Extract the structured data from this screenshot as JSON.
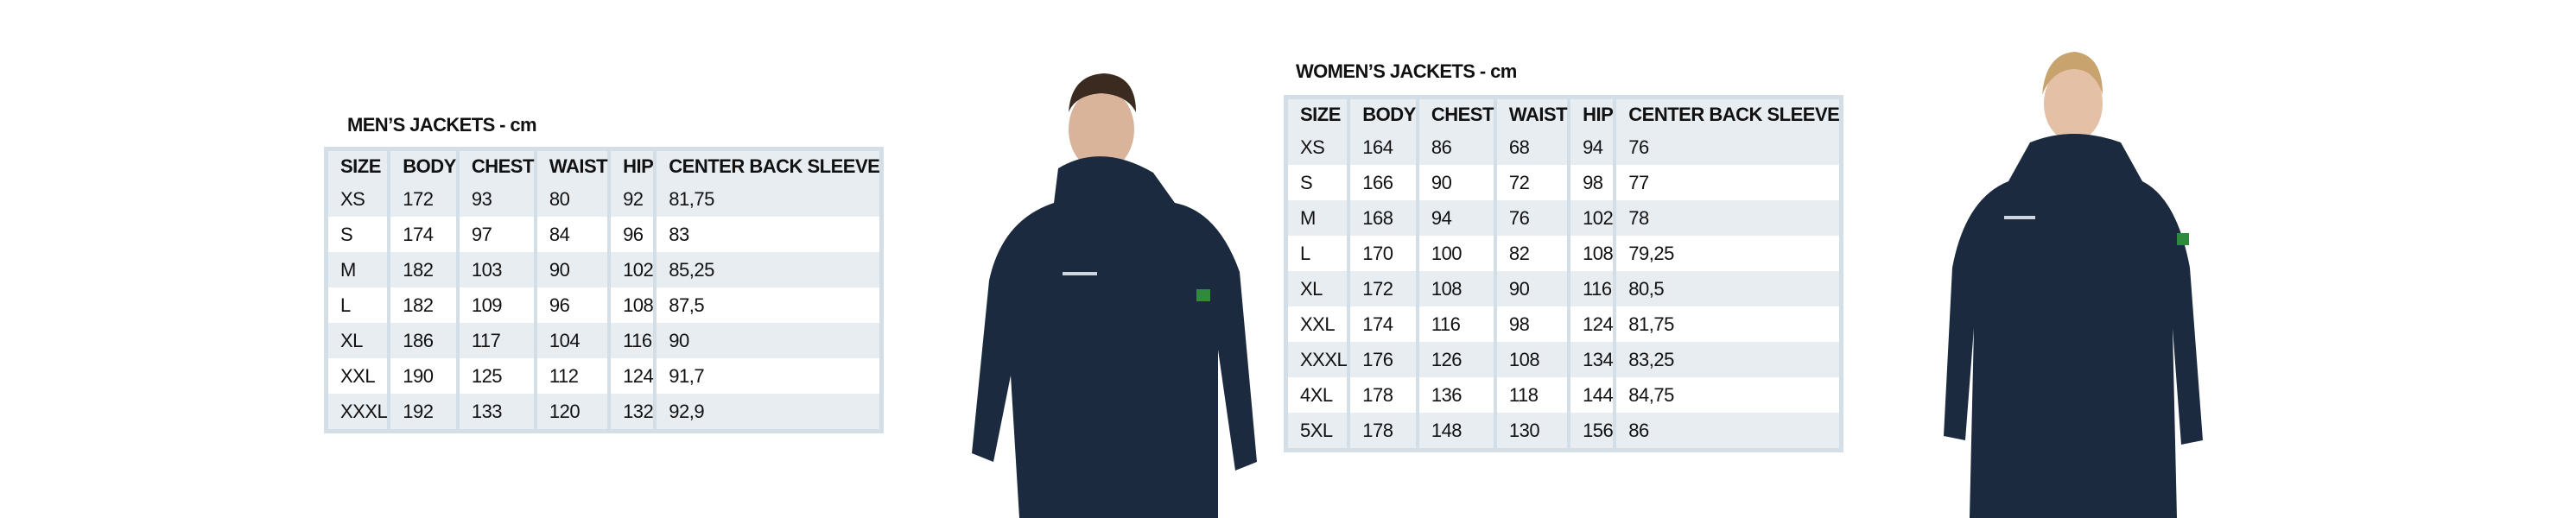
{
  "columns": [
    "SIZE",
    "BODY",
    "CHEST",
    "WAIST",
    "HIP",
    "CENTER BACK SLEEVE"
  ],
  "mens": {
    "title": "MEN’S JACKETS - cm",
    "rows": [
      [
        "XS",
        "172",
        "93",
        "80",
        "92",
        "81,75"
      ],
      [
        "S",
        "174",
        "97",
        "84",
        "96",
        "83"
      ],
      [
        "M",
        "182",
        "103",
        "90",
        "102",
        "85,25"
      ],
      [
        "L",
        "182",
        "109",
        "96",
        "108",
        "87,5"
      ],
      [
        "XL",
        "186",
        "117",
        "104",
        "116",
        "90"
      ],
      [
        "XXL",
        "190",
        "125",
        "112",
        "124",
        "91,7"
      ],
      [
        "XXXL",
        "192",
        "133",
        "120",
        "132",
        "92,9"
      ]
    ]
  },
  "womens": {
    "title": "WOMEN’S JACKETS - cm",
    "rows": [
      [
        "XS",
        "164",
        "86",
        "68",
        "94",
        "76"
      ],
      [
        "S",
        "166",
        "90",
        "72",
        "98",
        "77"
      ],
      [
        "M",
        "168",
        "94",
        "76",
        "102",
        "78"
      ],
      [
        "L",
        "170",
        "100",
        "82",
        "108",
        "79,25"
      ],
      [
        "XL",
        "172",
        "108",
        "90",
        "116",
        "80,5"
      ],
      [
        "XXL",
        "174",
        "116",
        "98",
        "124",
        "81,75"
      ],
      [
        "XXXL",
        "176",
        "126",
        "108",
        "134",
        "83,25"
      ],
      [
        "4XL",
        "178",
        "136",
        "118",
        "144",
        "84,75"
      ],
      [
        "5XL",
        "178",
        "148",
        "130",
        "156",
        "86"
      ]
    ]
  },
  "colors": {
    "jacket": "#1b2a3e",
    "border": "#d3dee7",
    "stripe": "#e8edf2"
  }
}
